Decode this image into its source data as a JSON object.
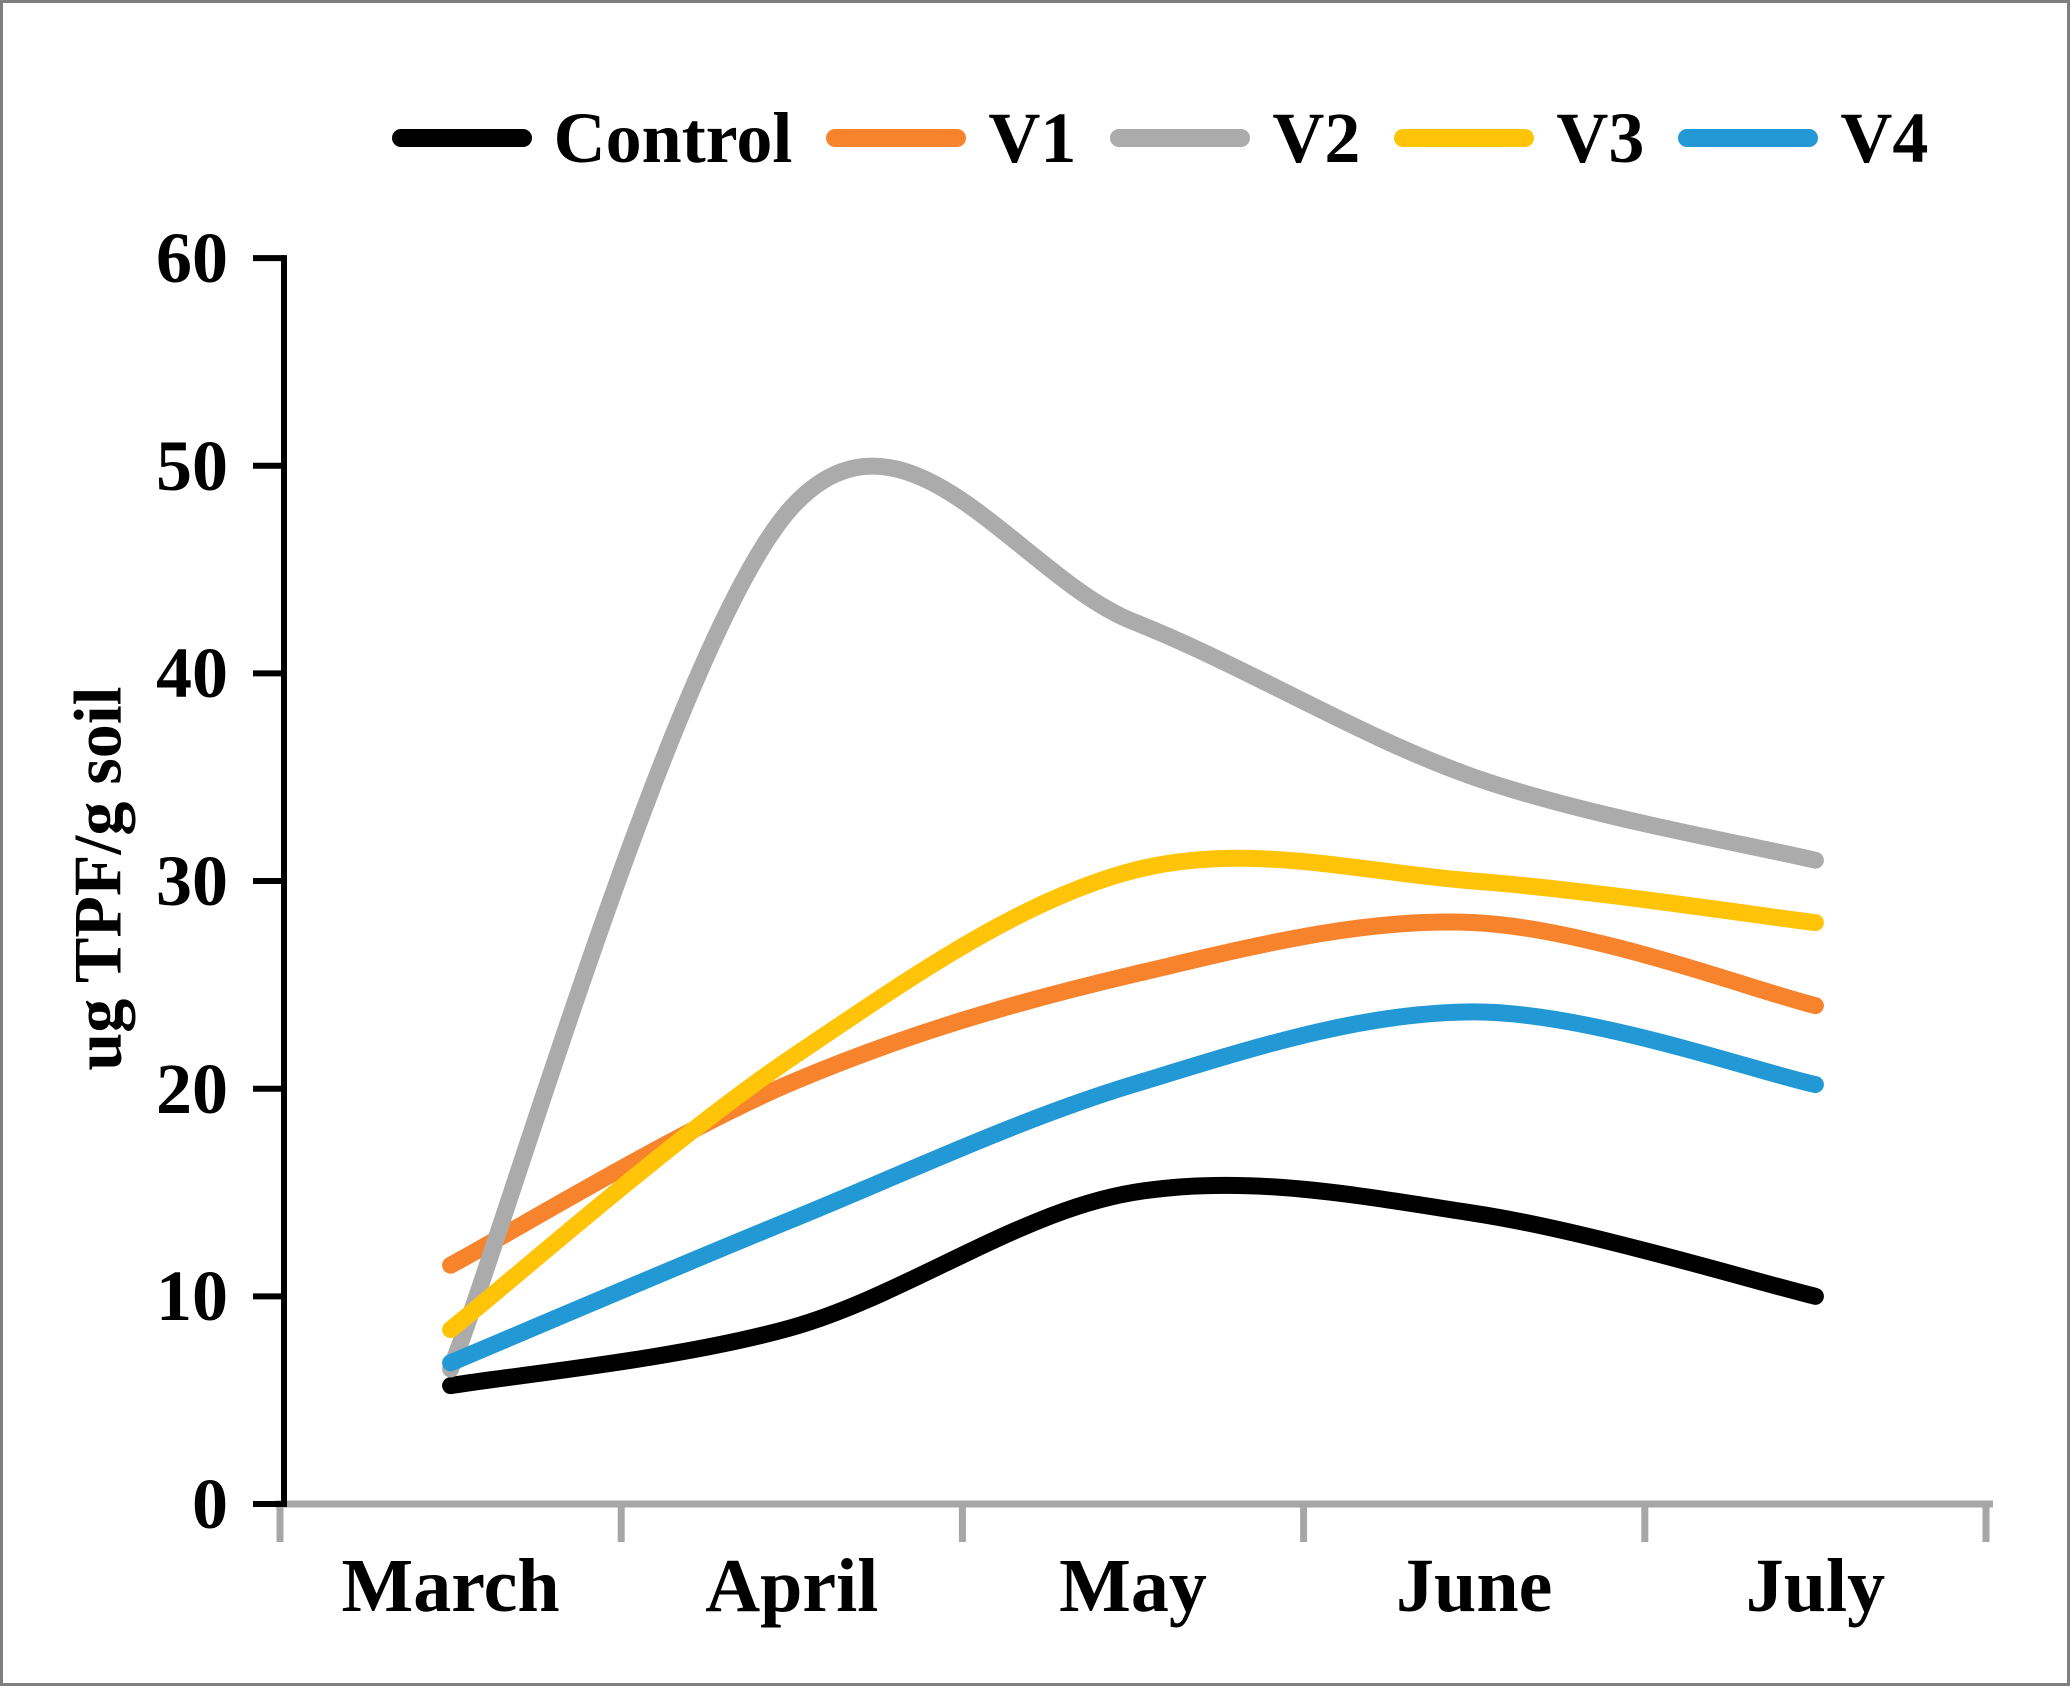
{
  "figure": {
    "background_color": "#ffffff",
    "border_color": "#7f7f7f"
  },
  "chart_data": {
    "type": "line",
    "title": "",
    "line_style": "smooth",
    "grid": false,
    "legend_position": "top",
    "categories": [
      "March",
      "April",
      "May",
      "June",
      "July"
    ],
    "series": [
      {
        "name": "Control",
        "color": "#000000",
        "values": [
          5.7,
          8.5,
          15.0,
          14.0,
          10.0
        ]
      },
      {
        "name": "V1",
        "color": "#F8832D",
        "values": [
          11.5,
          20.3,
          25.5,
          28.0,
          24.0
        ]
      },
      {
        "name": "V2",
        "color": "#ABABAB",
        "values": [
          6.5,
          48.0,
          42.5,
          35.0,
          31.0
        ]
      },
      {
        "name": "V3",
        "color": "#FFC408",
        "values": [
          8.4,
          21.5,
          30.5,
          30.0,
          28.0
        ]
      },
      {
        "name": "V4",
        "color": "#2299D5",
        "values": [
          6.8,
          13.7,
          20.2,
          23.7,
          20.2
        ]
      }
    ],
    "xlabel": "",
    "ylabel": "ug TPF/g soil",
    "ylim": [
      0,
      60
    ],
    "yticks": [
      0,
      10,
      20,
      30,
      40,
      50,
      60
    ],
    "y_axis_color": "#000000",
    "x_axis_color": "#A6A6A6"
  }
}
